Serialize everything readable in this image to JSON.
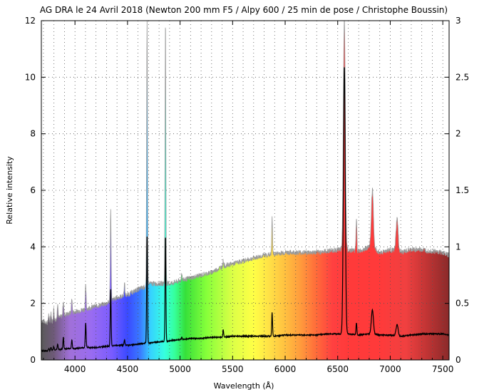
{
  "chart_data": {
    "type": "line",
    "title": "AG DRA le 24 Avril 2018 (Newton 200 mm F5 / Alpy 600 / 25 min de pose / Christophe Boussin)",
    "xlabel": "Wavelength (Å)",
    "ylabel": "Relative intensity",
    "xlim": [
      3680,
      7560
    ],
    "ylim": [
      0,
      12
    ],
    "y2lim": [
      0,
      3
    ],
    "x_ticks": [
      4000,
      4500,
      5000,
      5500,
      6000,
      6500,
      7000,
      7500
    ],
    "y_ticks": [
      0,
      2,
      4,
      6,
      8,
      10,
      12
    ],
    "y2_ticks": [
      0,
      0.5,
      1,
      1.5,
      2,
      2.5,
      3
    ],
    "x_tick_labels": [
      "4000",
      "4500",
      "5000",
      "5500",
      "6000",
      "6500",
      "7000",
      "7500"
    ],
    "y_tick_labels": [
      "0",
      "2",
      "4",
      "6",
      "8",
      "10",
      "12"
    ],
    "y2_tick_labels": [
      "0",
      "0.5",
      "1",
      "1.5",
      "2",
      "2.5",
      "3"
    ],
    "grid": true,
    "background": "visible-spectrum color gradient",
    "series": [
      {
        "axis": "right",
        "color": "#000000",
        "x": [
          3680,
          3750,
          3800,
          3850,
          3900,
          4000,
          4100,
          4200,
          4300,
          4400,
          4500,
          4600,
          4680,
          4700,
          4800,
          4900,
          5000,
          5100,
          5200,
          5300,
          5400,
          5500,
          5600,
          5700,
          5800,
          5900,
          6000,
          6100,
          6200,
          6300,
          6400,
          6500,
          6600,
          6700,
          6800,
          6900,
          7000,
          7100,
          7200,
          7300,
          7400,
          7500,
          7560
        ],
        "y": [
          0.08,
          0.08,
          0.09,
          0.09,
          0.1,
          0.1,
          0.11,
          0.11,
          0.12,
          0.13,
          0.13,
          0.14,
          0.15,
          0.15,
          0.16,
          0.17,
          0.18,
          0.19,
          0.19,
          0.2,
          0.2,
          0.21,
          0.21,
          0.21,
          0.21,
          0.21,
          0.22,
          0.22,
          0.22,
          0.22,
          0.23,
          0.23,
          0.23,
          0.22,
          0.23,
          0.22,
          0.22,
          0.21,
          0.22,
          0.23,
          0.23,
          0.23,
          0.22
        ]
      },
      {
        "axis": "left",
        "color": "#aaaaaa",
        "x": [
          3680,
          3750,
          3800,
          3850,
          3900,
          4000,
          4100,
          4200,
          4300,
          4400,
          4500,
          4600,
          4680,
          4700,
          4800,
          4900,
          5000,
          5100,
          5200,
          5300,
          5400,
          5500,
          5600,
          5700,
          5800,
          5900,
          6000,
          6100,
          6200,
          6300,
          6400,
          6500,
          6600,
          6700,
          6800,
          6900,
          7000,
          7100,
          7200,
          7300,
          7400,
          7500,
          7560
        ],
        "y": [
          1.4,
          1.3,
          1.4,
          1.5,
          1.6,
          1.7,
          1.8,
          1.9,
          2.0,
          2.2,
          2.3,
          2.5,
          2.6,
          2.7,
          2.7,
          2.7,
          2.8,
          2.9,
          3.0,
          3.1,
          3.3,
          3.4,
          3.5,
          3.6,
          3.7,
          3.75,
          3.8,
          3.8,
          3.8,
          3.8,
          3.85,
          3.9,
          3.9,
          3.85,
          4.0,
          3.8,
          3.9,
          3.8,
          3.9,
          3.9,
          3.85,
          3.8,
          3.7
        ]
      }
    ],
    "emission_lines": [
      {
        "x": 3750,
        "gray_peak": 1.6,
        "black_peak": 0.1
      },
      {
        "x": 3771,
        "gray_peak": 1.7,
        "black_peak": 0.11
      },
      {
        "x": 3798,
        "gray_peak": 1.8,
        "black_peak": 0.12
      },
      {
        "x": 3835,
        "gray_peak": 2.0,
        "black_peak": 0.14
      },
      {
        "x": 3889,
        "gray_peak": 2.1,
        "black_peak": 0.2
      },
      {
        "x": 3970,
        "gray_peak": 2.2,
        "black_peak": 0.18
      },
      {
        "x": 4102,
        "gray_peak": 2.6,
        "black_peak": 0.33
      },
      {
        "x": 4340,
        "gray_peak": 5.3,
        "black_peak": 0.62
      },
      {
        "x": 4471,
        "gray_peak": 2.7,
        "black_peak": 0.18
      },
      {
        "x": 4686,
        "gray_peak": 12.0,
        "black_peak": 1.09
      },
      {
        "x": 4861,
        "gray_peak": 12.0,
        "black_peak": 1.11
      },
      {
        "x": 5016,
        "gray_peak": 3.1,
        "black_peak": 0.2
      },
      {
        "x": 5411,
        "gray_peak": 3.5,
        "black_peak": 0.27
      },
      {
        "x": 5876,
        "gray_peak": 5.0,
        "black_peak": 0.42
      },
      {
        "x": 6563,
        "gray_peak": 12.0,
        "black_peak": 2.6
      },
      {
        "x": 6678,
        "gray_peak": 5.0,
        "black_peak": 0.33
      },
      {
        "x": 6830,
        "gray_peak": 6.0,
        "black_peak": 0.44
      },
      {
        "x": 7065,
        "gray_peak": 5.0,
        "black_peak": 0.31
      }
    ]
  }
}
